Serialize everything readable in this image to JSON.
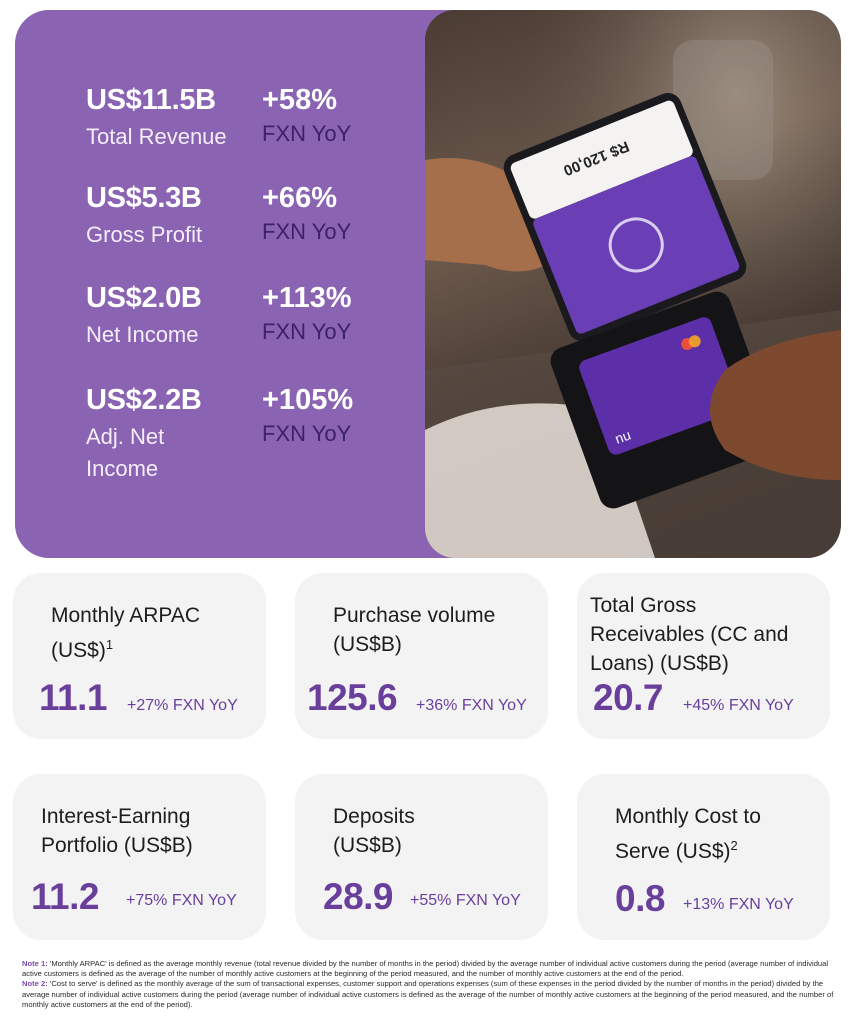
{
  "hero": {
    "metrics": [
      {
        "value": "US$11.5B",
        "label": "Total Revenue",
        "change": "+58%",
        "basis": "FXN YoY"
      },
      {
        "value": "US$5.3B",
        "label": "Gross Profit",
        "change": "+66%",
        "basis": "FXN YoY"
      },
      {
        "value": "US$2.0B",
        "label": "Net Income",
        "change": "+113%",
        "basis": "FXN YoY"
      },
      {
        "value": "US$2.2B",
        "label": "Adj. Net Income",
        "change": "+105%",
        "basis": "FXN YoY"
      }
    ],
    "photo": {
      "phone_amount": "R$ 120,00",
      "brand": "nu"
    }
  },
  "cards": [
    {
      "title": "Monthly ARPAC (US$)",
      "sup": "1",
      "value": "11.1",
      "change": "+27% FXN YoY"
    },
    {
      "title": "Purchase volume (US$B)",
      "sup": "",
      "value": "125.6",
      "change": "+36% FXN YoY"
    },
    {
      "title": "Total Gross Receivables (CC and Loans) (US$B)",
      "sup": "",
      "value": "20.7",
      "change": "+45% FXN YoY"
    },
    {
      "title": "Interest-Earning Portfolio (US$B)",
      "sup": "",
      "value": "11.2",
      "change": "+75% FXN YoY"
    },
    {
      "title": "Deposits (US$B)",
      "sup": "",
      "value": "28.9",
      "change": "+55% FXN YoY"
    },
    {
      "title": "Monthly Cost to Serve (US$)",
      "sup": "2",
      "value": "0.8",
      "change": "+13% FXN YoY"
    }
  ],
  "notes": [
    {
      "label": "Note 1:",
      "text": "'Monthly ARPAC' is defined as the average monthly revenue (total revenue divided by the number of months in the period) divided by the average number of individual active customers during the period (average number of individual active customers is defined as the average of the number of monthly active customers at the beginning of the period measured, and the number of monthly active customers at the end of the period."
    },
    {
      "label": "Note 2:",
      "text": "'Cost to serve' is defined as the monthly average of the sum of transactional expenses, customer support and operations expenses (sum of these expenses in the period divided by the number of months in the period) divided by the average number of individual active customers during the period (average number of individual active customers is defined as the average of the number of monthly active customers at the beginning of the period measured, and the number of monthly active customers at the end of the period)."
    }
  ]
}
